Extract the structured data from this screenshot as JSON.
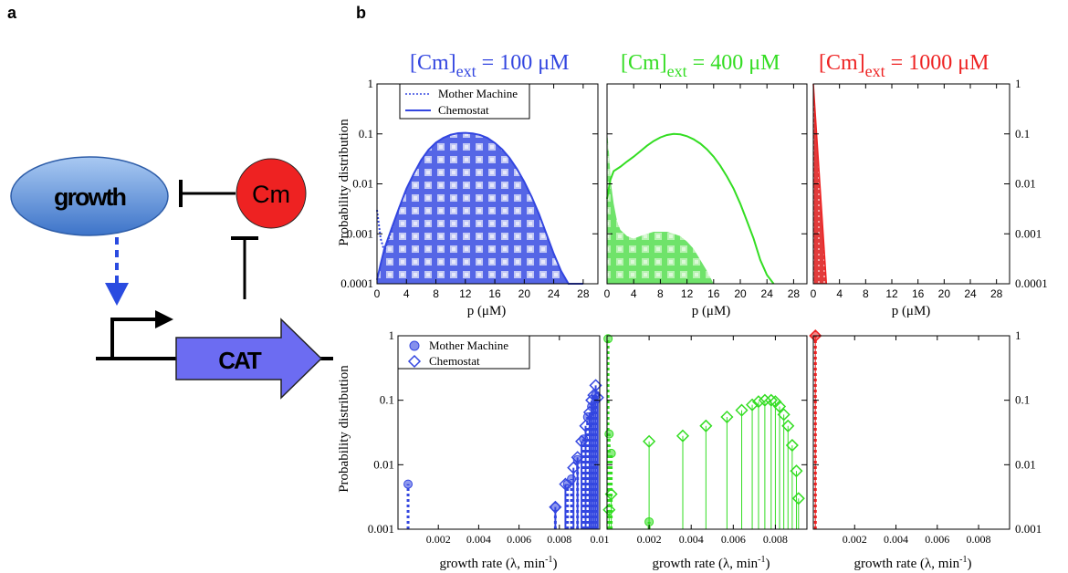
{
  "panel_labels": {
    "a": "a",
    "b": "b"
  },
  "schematic": {
    "growth_label": "growth",
    "cm_label": "Cm",
    "cat_label": "CAT",
    "colors": {
      "growth_fill": "#5b8fd6",
      "cm_fill": "#ee2222",
      "cat_fill": "#6c6cf2",
      "dashed_arrow": "#2a4be0"
    }
  },
  "columns": [
    {
      "title_main": "[Cm]",
      "title_sub": "ext",
      "title_tail": " = 100 μM",
      "color": "#3346e0"
    },
    {
      "title_main": "[Cm]",
      "title_sub": "ext",
      "title_tail": " = 400 μM",
      "color": "#33dd22"
    },
    {
      "title_main": "[Cm]",
      "title_sub": "ext",
      "title_tail": " = 1000 μM",
      "color": "#ee2222"
    }
  ],
  "top_row": {
    "ylabel": "Probability distribution",
    "xlabel": "p (μM)",
    "xticks": [
      "0",
      "4",
      "8",
      "12",
      "16",
      "20",
      "24",
      "28"
    ],
    "yticks": [
      "1",
      "0.1",
      "0.01",
      "0.001",
      "0.0001"
    ],
    "legend": [
      "Mother Machine",
      "Chemostat"
    ]
  },
  "bottom_row": {
    "ylabel": "Probability distribution",
    "xlabel_main": "growth rate (λ, min",
    "xlabel_sup": "-1",
    "xlabel_tail": ")",
    "xticks_first": [
      "0.002",
      "0.004",
      "0.006",
      "0.008",
      "0.01"
    ],
    "xticks_other": [
      "0.002",
      "0.004",
      "0.006",
      "0.008"
    ],
    "yticks": [
      "1",
      "0.1",
      "0.01",
      "0.001"
    ],
    "legend": [
      "Mother Machine",
      "Chemostat"
    ]
  },
  "chart_data": [
    {
      "type": "line",
      "panel": "top-left",
      "title": "[Cm]ext = 100 μM",
      "xlabel": "p (μM)",
      "ylabel": "Probability distribution",
      "xlim": [
        0,
        30
      ],
      "ylim": [
        0.0001,
        1
      ],
      "yscale": "log",
      "series": [
        {
          "name": "Chemostat",
          "x": [
            0,
            0.5,
            1,
            2,
            3,
            4,
            5,
            6,
            7,
            8,
            9,
            10,
            11,
            12,
            13,
            14,
            15,
            16,
            17,
            18,
            19,
            20,
            21,
            22,
            23,
            24,
            25,
            26,
            27,
            28
          ],
          "y": [
            0.00012,
            0.00025,
            0.0005,
            0.0013,
            0.0033,
            0.008,
            0.016,
            0.03,
            0.048,
            0.067,
            0.083,
            0.096,
            0.103,
            0.105,
            0.102,
            0.095,
            0.083,
            0.066,
            0.049,
            0.033,
            0.02,
            0.011,
            0.0055,
            0.0025,
            0.001,
            0.0004,
            0.00018,
            0.0001,
            0.0001,
            0.0001
          ]
        },
        {
          "name": "Mother Machine",
          "x": [
            0,
            0.5,
            1,
            2,
            3,
            4,
            6,
            8,
            10,
            12,
            14,
            16,
            18,
            20,
            22,
            24,
            26,
            28
          ],
          "y": [
            0.003,
            0.0008,
            0.00045,
            0.0012,
            0.003,
            0.0075,
            0.029,
            0.066,
            0.095,
            0.104,
            0.094,
            0.065,
            0.032,
            0.011,
            0.0025,
            0.0004,
            0.0001,
            0.0001
          ]
        }
      ]
    },
    {
      "type": "area",
      "panel": "top-middle",
      "title": "[Cm]ext = 400 μM",
      "xlabel": "p (μM)",
      "xlim": [
        0,
        30
      ],
      "ylim": [
        0.0001,
        1
      ],
      "yscale": "log",
      "series": [
        {
          "name": "Chemostat",
          "x": [
            0,
            0.5,
            1,
            2,
            3,
            4,
            5,
            6,
            7,
            8,
            9,
            10,
            11,
            12,
            13,
            14,
            15,
            16,
            17,
            18,
            19,
            20,
            21,
            22,
            23,
            24,
            25
          ],
          "y": [
            0.005,
            0.012,
            0.018,
            0.022,
            0.028,
            0.035,
            0.045,
            0.058,
            0.072,
            0.085,
            0.095,
            0.1,
            0.098,
            0.09,
            0.078,
            0.064,
            0.049,
            0.035,
            0.023,
            0.014,
            0.008,
            0.004,
            0.0018,
            0.0008,
            0.0003,
            0.00015,
            0.0001
          ]
        },
        {
          "name": "Mother Machine",
          "x": [
            0,
            0.3,
            0.6,
            1,
            1.5,
            2,
            3,
            4,
            5,
            6,
            7,
            8,
            9,
            10,
            11,
            12,
            13,
            14,
            15,
            16
          ],
          "y": [
            0.12,
            0.04,
            0.01,
            0.004,
            0.0018,
            0.0012,
            0.0009,
            0.0008,
            0.0009,
            0.001,
            0.0011,
            0.0011,
            0.0011,
            0.001,
            0.0009,
            0.0007,
            0.0005,
            0.0003,
            0.00018,
            0.0001
          ]
        }
      ]
    },
    {
      "type": "area",
      "panel": "top-right",
      "title": "[Cm]ext = 1000 μM",
      "xlabel": "p (μM)",
      "xlim": [
        0,
        30
      ],
      "ylim": [
        0.0001,
        1
      ],
      "yscale": "log",
      "series": [
        {
          "name": "Chemostat",
          "x": [
            0,
            0.5,
            1,
            1.5,
            2
          ],
          "y": [
            1,
            0.1,
            0.01,
            0.001,
            0.0001
          ]
        },
        {
          "name": "Mother Machine",
          "x": [
            0,
            0.5,
            1,
            1.5,
            2
          ],
          "y": [
            0.95,
            0.09,
            0.009,
            0.0009,
            0.0001
          ]
        }
      ]
    },
    {
      "type": "scatter",
      "panel": "bottom-left",
      "xlabel": "growth rate (λ, min-1)",
      "ylabel": "Probability distribution",
      "xlim": [
        0,
        0.01
      ],
      "ylim": [
        0.001,
        1
      ],
      "yscale": "log",
      "series": [
        {
          "name": "Mother Machine",
          "x": [
            0.0005,
            0.0078,
            0.0084,
            0.0086,
            0.0089,
            0.0092,
            0.0094,
            0.0096,
            0.0098
          ],
          "y": [
            0.005,
            0.0022,
            0.005,
            0.006,
            0.012,
            0.025,
            0.055,
            0.08,
            0.12
          ]
        },
        {
          "name": "Chemostat",
          "x": [
            0.0078,
            0.0083,
            0.0087,
            0.0089,
            0.0091,
            0.0093,
            0.0095,
            0.0096,
            0.0097,
            0.0098,
            0.0099
          ],
          "y": [
            0.0022,
            0.005,
            0.009,
            0.013,
            0.023,
            0.04,
            0.065,
            0.1,
            0.12,
            0.17,
            0.11
          ]
        }
      ]
    },
    {
      "type": "scatter",
      "panel": "bottom-middle",
      "xlabel": "growth rate (λ, min-1)",
      "xlim": [
        0,
        0.0095
      ],
      "ylim": [
        0.001,
        1
      ],
      "yscale": "log",
      "series": [
        {
          "name": "Mother Machine",
          "x": [
            5e-05,
            0.0001,
            0.0002,
            0.002
          ],
          "y": [
            0.9,
            0.03,
            0.015,
            0.0013
          ]
        },
        {
          "name": "Chemostat",
          "x": [
            0.0001,
            0.0002,
            0.002,
            0.0036,
            0.0047,
            0.0057,
            0.0064,
            0.0069,
            0.0072,
            0.0075,
            0.0078,
            0.008,
            0.0082,
            0.0084,
            0.0086,
            0.0088,
            0.009,
            0.0091
          ],
          "y": [
            0.002,
            0.0035,
            0.023,
            0.028,
            0.04,
            0.055,
            0.07,
            0.085,
            0.095,
            0.1,
            0.1,
            0.095,
            0.08,
            0.06,
            0.04,
            0.02,
            0.008,
            0.003
          ]
        }
      ]
    },
    {
      "type": "scatter",
      "panel": "bottom-right",
      "xlabel": "growth rate (λ, min-1)",
      "xlim": [
        0,
        0.0095
      ],
      "ylim": [
        0.001,
        1
      ],
      "yscale": "log",
      "series": [
        {
          "name": "Mother Machine",
          "x": [
            0.0001
          ],
          "y": [
            1
          ]
        },
        {
          "name": "Chemostat",
          "x": [
            0.0001
          ],
          "y": [
            1
          ]
        }
      ]
    }
  ]
}
